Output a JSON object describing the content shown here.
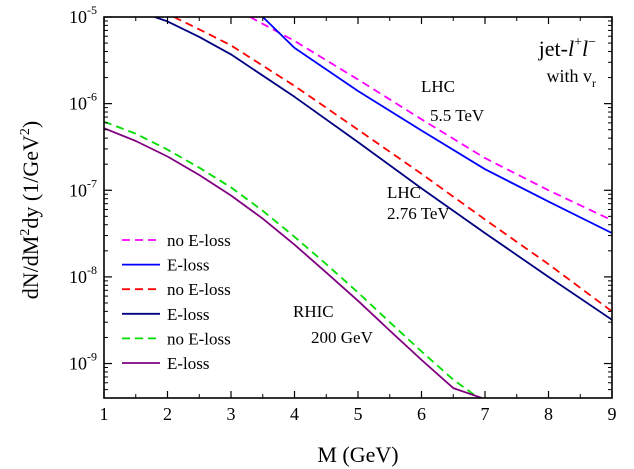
{
  "chart_data": {
    "type": "line",
    "title": "jet-l+l−",
    "title_parts": {
      "main": "jet-",
      "l": "l",
      "plus": "+",
      "minus": "−"
    },
    "subtitle": {
      "text": "with v",
      "sub": "r"
    },
    "xlabel": "M (GeV)",
    "ylabel_parts": {
      "a": "dN/dM",
      "a_sup": "2",
      "b": "dy (1/GeV",
      "b_sup": "2",
      "c": ")"
    },
    "xlim": [
      1,
      9
    ],
    "ylim": [
      4e-10,
      1e-05
    ],
    "yscale": "log",
    "x_ticks": [
      "1",
      "2",
      "3",
      "4",
      "5",
      "6",
      "7",
      "8",
      "9"
    ],
    "y_ticks": [
      {
        "base": "10",
        "exp": "-9"
      },
      {
        "base": "10",
        "exp": "-8"
      },
      {
        "base": "10",
        "exp": "-7"
      },
      {
        "base": "10",
        "exp": "-6"
      },
      {
        "base": "10",
        "exp": "-5"
      }
    ],
    "annotations": [
      {
        "line1": "LHC",
        "line2": "5.5 TeV"
      },
      {
        "line1": "LHC",
        "line2": "2.76 TeV"
      },
      {
        "line1": "RHIC",
        "line2": "200 GeV"
      }
    ],
    "legend_position": "bottom-left",
    "series": [
      {
        "name": "no E-loss",
        "color": "#ff00ff",
        "dash": true,
        "x": [
          3.3,
          4,
          5,
          6,
          7,
          8,
          9
        ],
        "y": [
          1e-05,
          5.3e-06,
          1.9e-06,
          6.6e-07,
          2.35e-07,
          1e-07,
          4.5e-08
        ]
      },
      {
        "name": "E-loss",
        "color": "#0000ff",
        "dash": false,
        "x": [
          3.5,
          4,
          5,
          6,
          7,
          8,
          9
        ],
        "y": [
          1e-05,
          4.4e-06,
          1.4e-06,
          4.9e-07,
          1.75e-07,
          7.4e-08,
          3.2e-08
        ]
      },
      {
        "name": "no E-loss",
        "color": "#ff0000",
        "dash": true,
        "x": [
          2.1,
          2.5,
          3,
          4,
          5,
          6,
          7,
          8,
          9
        ],
        "y": [
          1e-05,
          7.2e-06,
          4.7e-06,
          1.6e-06,
          5e-07,
          1.55e-07,
          4.6e-08,
          1.4e-08,
          4e-09
        ]
      },
      {
        "name": "E-loss",
        "color": "#000080",
        "dash": false,
        "x": [
          1.8,
          2,
          2.5,
          3,
          4,
          5,
          6,
          7,
          8,
          9
        ],
        "y": [
          1e-05,
          8.9e-06,
          5.9e-06,
          3.7e-06,
          1.2e-06,
          3.6e-07,
          1.05e-07,
          3.2e-08,
          1e-08,
          3.2e-09
        ]
      },
      {
        "name": "no E-loss",
        "color": "#00dd00",
        "dash": true,
        "x": [
          1,
          1.5,
          2,
          2.5,
          3,
          3.5,
          4,
          4.5,
          5,
          5.5,
          6,
          6.5,
          6.9
        ],
        "y": [
          6.2e-07,
          4.5e-07,
          2.95e-07,
          1.82e-07,
          1.08e-07,
          5.8e-08,
          2.9e-08,
          1.4e-08,
          6.6e-09,
          3e-09,
          1.38e-09,
          6.5e-10,
          4e-10
        ]
      },
      {
        "name": "E-loss",
        "color": "#800080",
        "dash": false,
        "x": [
          1,
          1.5,
          2,
          2.5,
          3,
          3.5,
          4,
          4.5,
          5,
          5.5,
          6,
          6.5,
          6.95
        ],
        "y": [
          5.2e-07,
          3.7e-07,
          2.45e-07,
          1.5e-07,
          8.7e-08,
          4.7e-08,
          2.35e-08,
          1.12e-08,
          5.3e-09,
          2.4e-09,
          1.1e-09,
          5.2e-10,
          4e-10
        ]
      }
    ]
  }
}
